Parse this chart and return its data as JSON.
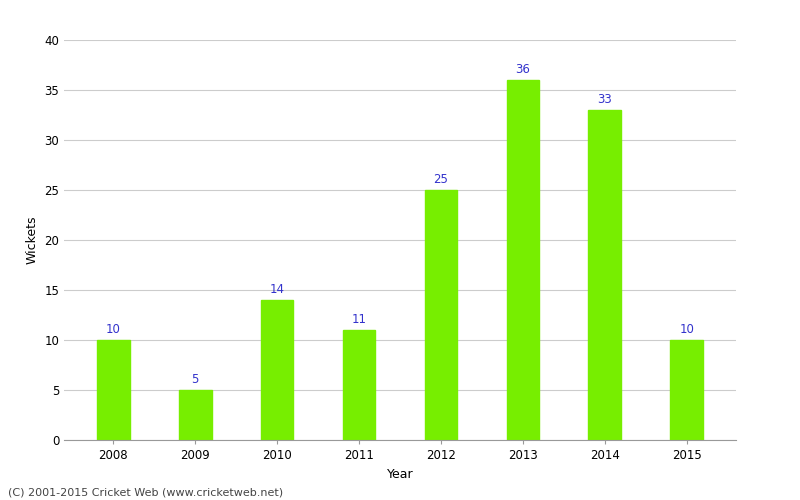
{
  "years": [
    "2008",
    "2009",
    "2010",
    "2011",
    "2012",
    "2013",
    "2014",
    "2015"
  ],
  "wickets": [
    10,
    5,
    14,
    11,
    25,
    36,
    33,
    10
  ],
  "bar_color": "#77ee00",
  "bar_edge_color": "#77ee00",
  "label_color": "#3333cc",
  "xlabel": "Year",
  "ylabel": "Wickets",
  "ylim": [
    0,
    40
  ],
  "yticks": [
    0,
    5,
    10,
    15,
    20,
    25,
    30,
    35,
    40
  ],
  "grid_color": "#cccccc",
  "background_color": "#ffffff",
  "footer_text": "(C) 2001-2015 Cricket Web (www.cricketweb.net)",
  "label_fontsize": 8.5,
  "axis_label_fontsize": 9,
  "tick_fontsize": 8.5,
  "footer_fontsize": 8,
  "bar_width": 0.4
}
